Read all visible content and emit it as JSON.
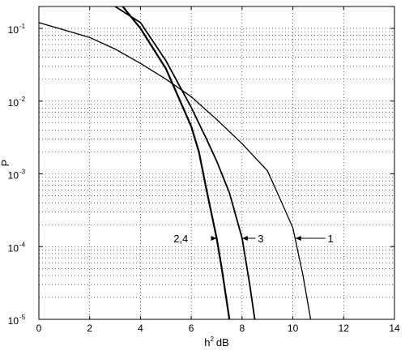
{
  "chart_data": {
    "type": "line",
    "xlabel": "h",
    "xlabel_sup": "2",
    "xlabel_unit": "dB",
    "ylabel": "P",
    "xlim": [
      0,
      14
    ],
    "ylim": [
      1e-05,
      0.2
    ],
    "yscale": "log",
    "grid": true,
    "x_ticks": [
      "0",
      "2",
      "4",
      "6",
      "8",
      "10",
      "12",
      "14"
    ],
    "y_ticks": [
      {
        "value": 0.1,
        "base": "10",
        "exp": "-1"
      },
      {
        "value": 0.01,
        "base": "10",
        "exp": "-2"
      },
      {
        "value": 0.001,
        "base": "10",
        "exp": "-3"
      },
      {
        "value": 0.0001,
        "base": "10",
        "exp": "-4"
      },
      {
        "value": 1e-05,
        "base": "10",
        "exp": "-5"
      }
    ],
    "series": [
      {
        "name": "1",
        "width": 1.3,
        "points": [
          [
            0,
            0.12
          ],
          [
            1,
            0.095
          ],
          [
            2,
            0.075
          ],
          [
            3,
            0.052
          ],
          [
            4,
            0.033
          ],
          [
            5,
            0.02
          ],
          [
            6,
            0.0115
          ],
          [
            7,
            0.0056
          ],
          [
            8,
            0.0026
          ],
          [
            9,
            0.0011
          ],
          [
            9.5,
            0.00045
          ],
          [
            10,
            0.00018
          ],
          [
            10.4,
            4e-05
          ],
          [
            10.7,
            1e-05
          ]
        ]
      },
      {
        "name": "3",
        "width": 1.8,
        "points": [
          [
            3,
            0.2
          ],
          [
            4,
            0.12
          ],
          [
            5,
            0.036
          ],
          [
            6,
            0.0082
          ],
          [
            6.6,
            0.003
          ],
          [
            7,
            0.0015
          ],
          [
            7.5,
            0.00055
          ],
          [
            8,
            0.00013
          ],
          [
            8.3,
            3e-05
          ],
          [
            8.5,
            1e-05
          ]
        ]
      },
      {
        "name": "2,4",
        "width": 2.2,
        "points": [
          [
            3.3,
            0.2
          ],
          [
            4,
            0.1
          ],
          [
            5,
            0.028
          ],
          [
            6,
            0.0045
          ],
          [
            6.3,
            0.002
          ],
          [
            6.6,
            0.0006
          ],
          [
            7,
            0.00013
          ],
          [
            7.2,
            5e-05
          ],
          [
            7.5,
            1e-05
          ]
        ]
      }
    ],
    "annotations": [
      {
        "text": "2,4",
        "side": "left",
        "text_x": 5.3,
        "text_y": 0.00013,
        "arrow_from": 6.85,
        "arrow_to": 7.0
      },
      {
        "text": "3",
        "side": "right",
        "text_x": 8.85,
        "text_y": 0.00013,
        "arrow_from": 8.8,
        "arrow_to": 8.0
      },
      {
        "text": "1",
        "side": "right",
        "text_x": 11.6,
        "text_y": 0.00013,
        "arrow_from": 11.5,
        "arrow_to": 10.1
      }
    ]
  }
}
